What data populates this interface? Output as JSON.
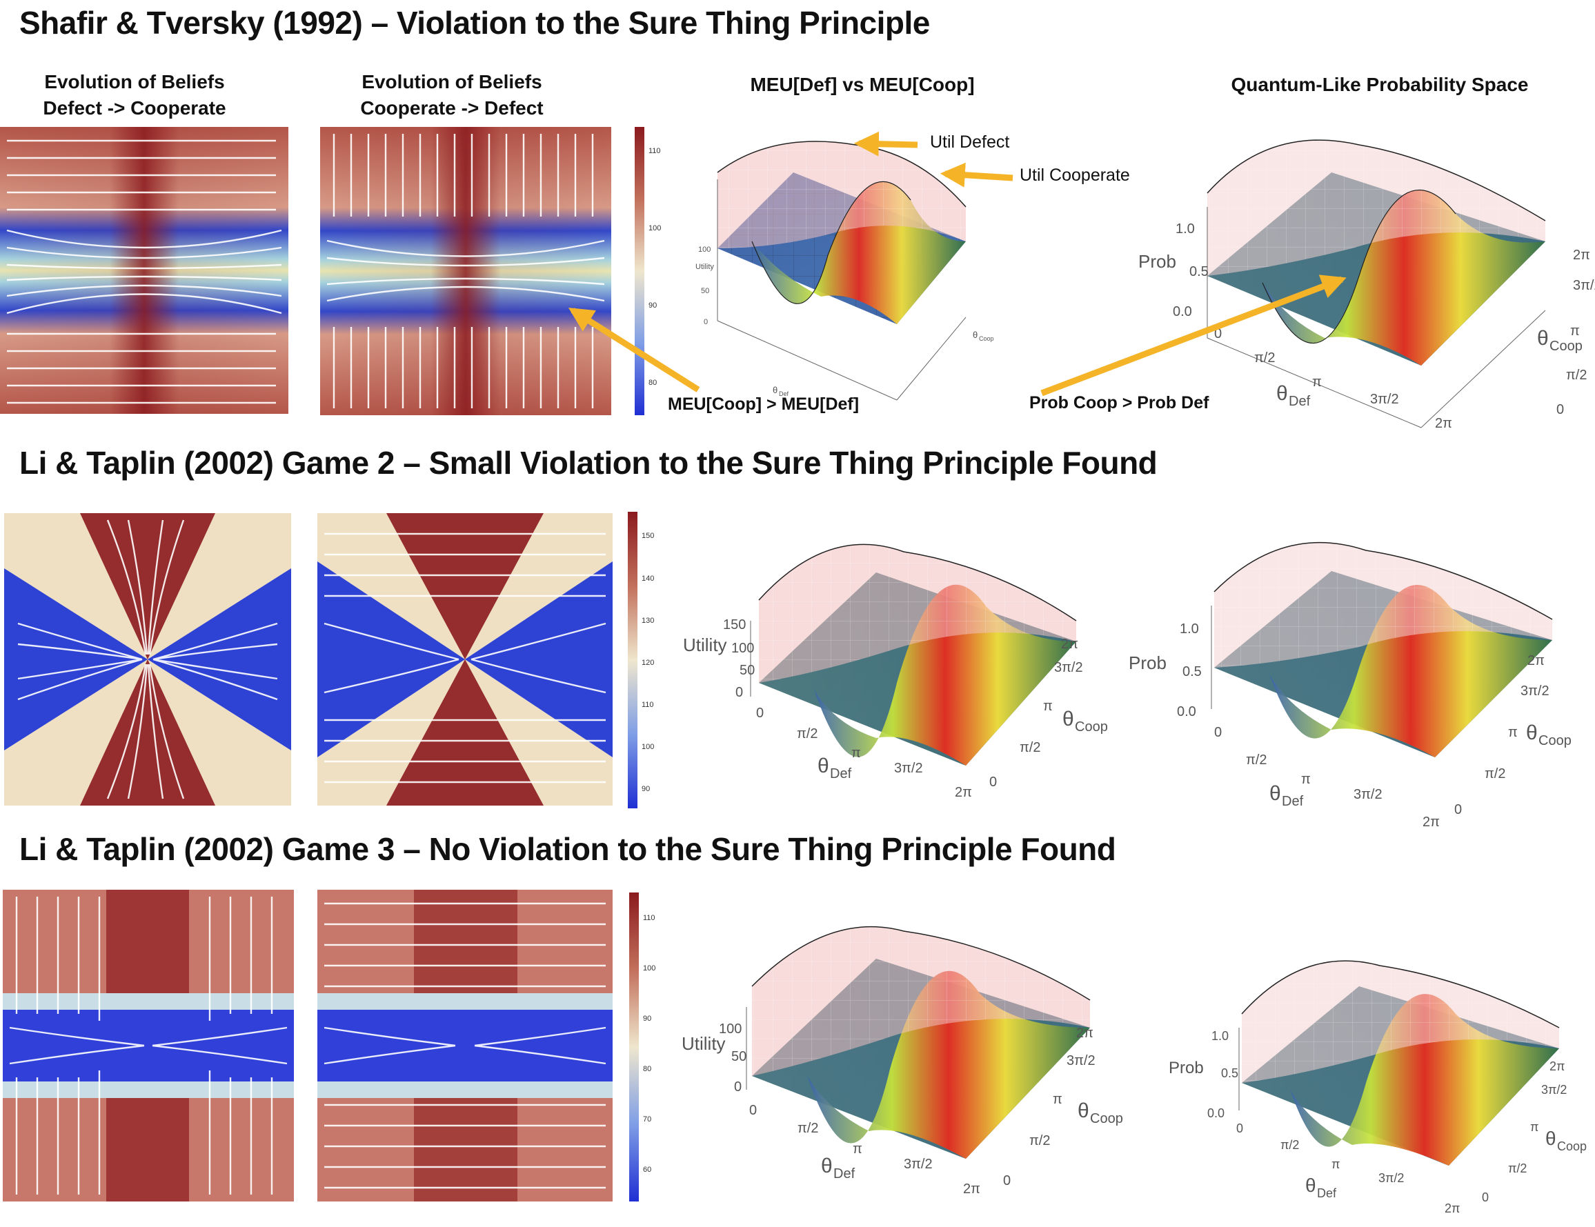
{
  "rows": [
    {
      "title": "Shafir & Tversky (1992) – Violation to the Sure Thing Principle",
      "col_titles": [
        "Evolution of Beliefs\nDefect -> Cooperate",
        "Evolution of Beliefs\nCooperate -> Defect",
        "MEU[Def] vs MEU[Coop]",
        "Quantum-Like Probability Space"
      ],
      "colorbar_ticks": [
        "110",
        "100",
        "90",
        "80"
      ],
      "annotations": [
        "Util Defect",
        "Util Cooperate",
        "MEU[Coop] > MEU[Def]",
        "Prob Coop > Prob Def"
      ],
      "utility_axis": {
        "label": "Utility",
        "ticks": [
          "0",
          "50",
          "100"
        ]
      },
      "prob_axis": {
        "label": "Prob",
        "ticks": [
          "0.0",
          "0.5",
          "1.0"
        ]
      }
    },
    {
      "title": "Li & Taplin (2002) Game 2 – Small Violation to the Sure Thing Principle Found",
      "colorbar_ticks": [
        "150",
        "140",
        "130",
        "120",
        "110",
        "100",
        "90"
      ],
      "utility_axis": {
        "label": "Utility",
        "ticks": [
          "0",
          "50",
          "100",
          "150"
        ]
      },
      "prob_axis": {
        "label": "Prob",
        "ticks": [
          "0.0",
          "0.5",
          "1.0"
        ]
      }
    },
    {
      "title": "Li & Taplin (2002) Game 3 – No Violation to the Sure Thing Principle Found",
      "colorbar_ticks": [
        "110",
        "100",
        "90",
        "80",
        "70",
        "60"
      ],
      "utility_axis": {
        "label": "Utility",
        "ticks": [
          "0",
          "50",
          "100"
        ]
      },
      "prob_axis": {
        "label": "Prob",
        "ticks": [
          "0.0",
          "0.5",
          "1.0"
        ]
      }
    }
  ],
  "axes": {
    "theta_def": "θ",
    "theta_def_sub": "Def",
    "theta_coop": "θ",
    "theta_coop_sub": "Coop",
    "x_ticks": [
      "0",
      "π/2",
      "π",
      "3π/2",
      "2π"
    ],
    "y_ticks": [
      "0",
      "π/2",
      "π",
      "3π/2",
      "2π"
    ]
  },
  "colors": {
    "map_high": "#8b1a1e",
    "map_mid": "#f0e6c8",
    "map_low": "#1f35d6",
    "annotation_arrow": "#f5b428",
    "surface_pink": "#f2c0c0",
    "surface_blue": "#3a5fa8",
    "surface_peak": "#e02020"
  },
  "chart_data": [
    {
      "type": "heatmap",
      "title": "Evolution of Beliefs Defect -> Cooperate",
      "row": 1,
      "colorbar": {
        "min": 78,
        "max": 112,
        "ticks": [
          110,
          100,
          90,
          80
        ]
      },
      "x_range": [
        0,
        6.283
      ],
      "y_range": [
        0,
        6.283
      ]
    },
    {
      "type": "heatmap",
      "title": "Evolution of Beliefs Cooperate -> Defect",
      "row": 1,
      "colorbar": {
        "min": 78,
        "max": 112,
        "ticks": [
          110,
          100,
          90,
          80
        ]
      }
    },
    {
      "type": "surface",
      "title": "MEU[Def] vs MEU[Coop]",
      "row": 1,
      "zlabel": "Utility",
      "z_range": [
        0,
        100
      ],
      "series": [
        {
          "name": "Util Defect"
        },
        {
          "name": "Util Cooperate"
        }
      ]
    },
    {
      "type": "surface",
      "title": "Quantum-Like Probability Space",
      "row": 1,
      "zlabel": "Prob",
      "z_range": [
        0,
        1.0
      ]
    },
    {
      "type": "heatmap",
      "row": 2,
      "colorbar": {
        "min": 87,
        "max": 155,
        "ticks": [
          150,
          140,
          130,
          120,
          110,
          100,
          90
        ]
      }
    },
    {
      "type": "heatmap",
      "row": 2,
      "colorbar": {
        "min": 87,
        "max": 155,
        "ticks": [
          150,
          140,
          130,
          120,
          110,
          100,
          90
        ]
      }
    },
    {
      "type": "surface",
      "row": 2,
      "zlabel": "Utility",
      "z_range": [
        0,
        150
      ]
    },
    {
      "type": "surface",
      "row": 2,
      "zlabel": "Prob",
      "z_range": [
        0,
        1.0
      ]
    },
    {
      "type": "heatmap",
      "row": 3,
      "colorbar": {
        "min": 55,
        "max": 115,
        "ticks": [
          110,
          100,
          90,
          80,
          70,
          60
        ]
      }
    },
    {
      "type": "heatmap",
      "row": 3,
      "colorbar": {
        "min": 55,
        "max": 115,
        "ticks": [
          110,
          100,
          90,
          80,
          70,
          60
        ]
      }
    },
    {
      "type": "surface",
      "row": 3,
      "zlabel": "Utility",
      "z_range": [
        0,
        100
      ]
    },
    {
      "type": "surface",
      "row": 3,
      "zlabel": "Prob",
      "z_range": [
        0,
        1.0
      ]
    }
  ]
}
